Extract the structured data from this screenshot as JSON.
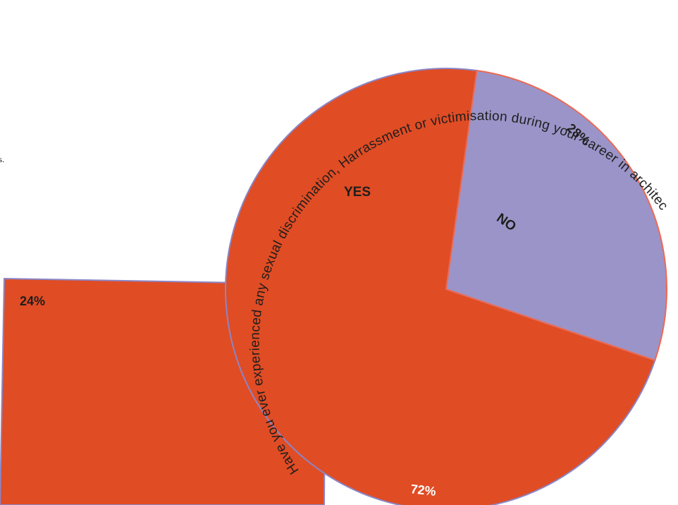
{
  "page": {
    "stray_text": "s."
  },
  "colors": {
    "yes": "#e04c24",
    "no": "#9b94c8",
    "outline": "#8b86c6",
    "no_edge": "#ec6a53",
    "text_dark": "#1e1e1e",
    "text_light": "#ffffff"
  },
  "side_panel": {
    "label": "24%"
  },
  "chart_data": {
    "type": "pie",
    "title": "Have you ever experienced any sexual discrimination, Harrassment or victimisation during your career in architecture?",
    "slices": [
      {
        "label": "YES",
        "value": 72,
        "value_label": "72%"
      },
      {
        "label": "NO",
        "value": 28,
        "value_label": "28%"
      }
    ]
  }
}
